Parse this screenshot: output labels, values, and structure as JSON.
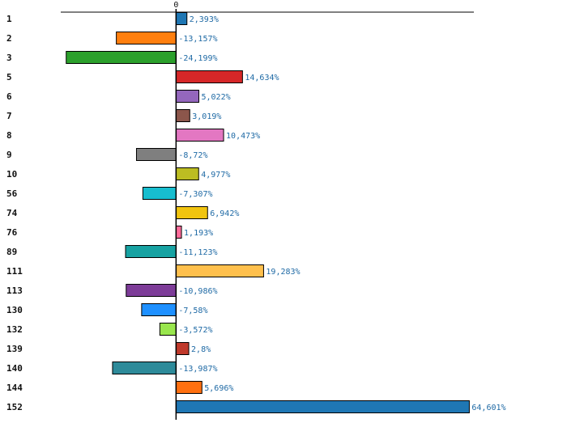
{
  "chart_data": {
    "type": "bar",
    "orientation": "horizontal",
    "title": "",
    "xlabel": "",
    "ylabel": "",
    "categories": [
      "1",
      "2",
      "3",
      "5",
      "6",
      "7",
      "8",
      "9",
      "10",
      "56",
      "74",
      "76",
      "89",
      "111",
      "113",
      "130",
      "132",
      "139",
      "140",
      "144",
      "152"
    ],
    "values": [
      2.393,
      -13.157,
      -24.199,
      14.634,
      5.022,
      3.019,
      10.473,
      -8.72,
      4.977,
      -7.307,
      6.942,
      1.193,
      -11.123,
      19.283,
      -10.986,
      -7.58,
      -3.572,
      2.8,
      -13.987,
      5.696,
      64.601
    ],
    "value_labels": [
      "2,393%",
      "-13,157%",
      "-24,199%",
      "14,634%",
      "5,022%",
      "3,019%",
      "10,473%",
      "-8,72%",
      "4,977%",
      "-7,307%",
      "6,942%",
      "1,193%",
      "-11,123%",
      "19,283%",
      "-10,986%",
      "-7,58%",
      "-3,572%",
      "2,8%",
      "-13,987%",
      "5,696%",
      "64,601%"
    ],
    "colors": [
      "#1f77b4",
      "#ff7f0e",
      "#2ca02c",
      "#d62728",
      "#9467bd",
      "#8c564b",
      "#e377c2",
      "#7f7f7f",
      "#bcbd22",
      "#17becf",
      "#f1c40f",
      "#ff6b9a",
      "#17a2a2",
      "#ffc04d",
      "#7d3c98",
      "#1e90ff",
      "#99e64d",
      "#c0392b",
      "#2e8b9a",
      "#ff7010",
      "#1f77b4"
    ],
    "zero_tick_label": "0",
    "xlim": [
      -25.4,
      65.6
    ],
    "grid": false,
    "legend": "none"
  }
}
